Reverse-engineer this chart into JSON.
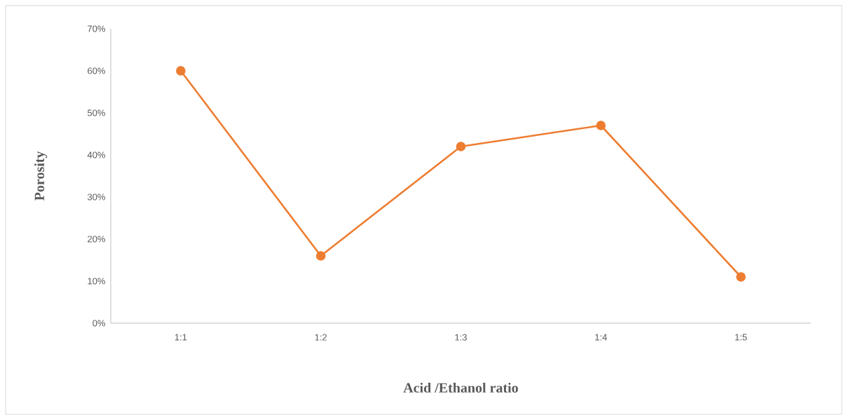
{
  "chart_data": {
    "type": "line",
    "xlabel": "Acid /Ethanol ratio",
    "ylabel": "Porosity",
    "categories": [
      "1:1",
      "1:2",
      "1:3",
      "1:4",
      "1:5"
    ],
    "series": [
      {
        "color": "#ed7d31",
        "values": [
          60,
          16,
          42,
          47,
          11
        ]
      }
    ],
    "ylim": [
      0,
      70
    ],
    "yticks": [
      {
        "value": 0,
        "label": "0%"
      },
      {
        "value": 10,
        "label": "10%"
      },
      {
        "value": 20,
        "label": "20%"
      },
      {
        "value": 30,
        "label": "30%"
      },
      {
        "value": 40,
        "label": "40%"
      },
      {
        "value": 50,
        "label": "50%"
      },
      {
        "value": 60,
        "label": "60%"
      },
      {
        "value": 70,
        "label": "70%"
      }
    ],
    "marker": "circle",
    "line_style": "solid",
    "grid": false
  }
}
